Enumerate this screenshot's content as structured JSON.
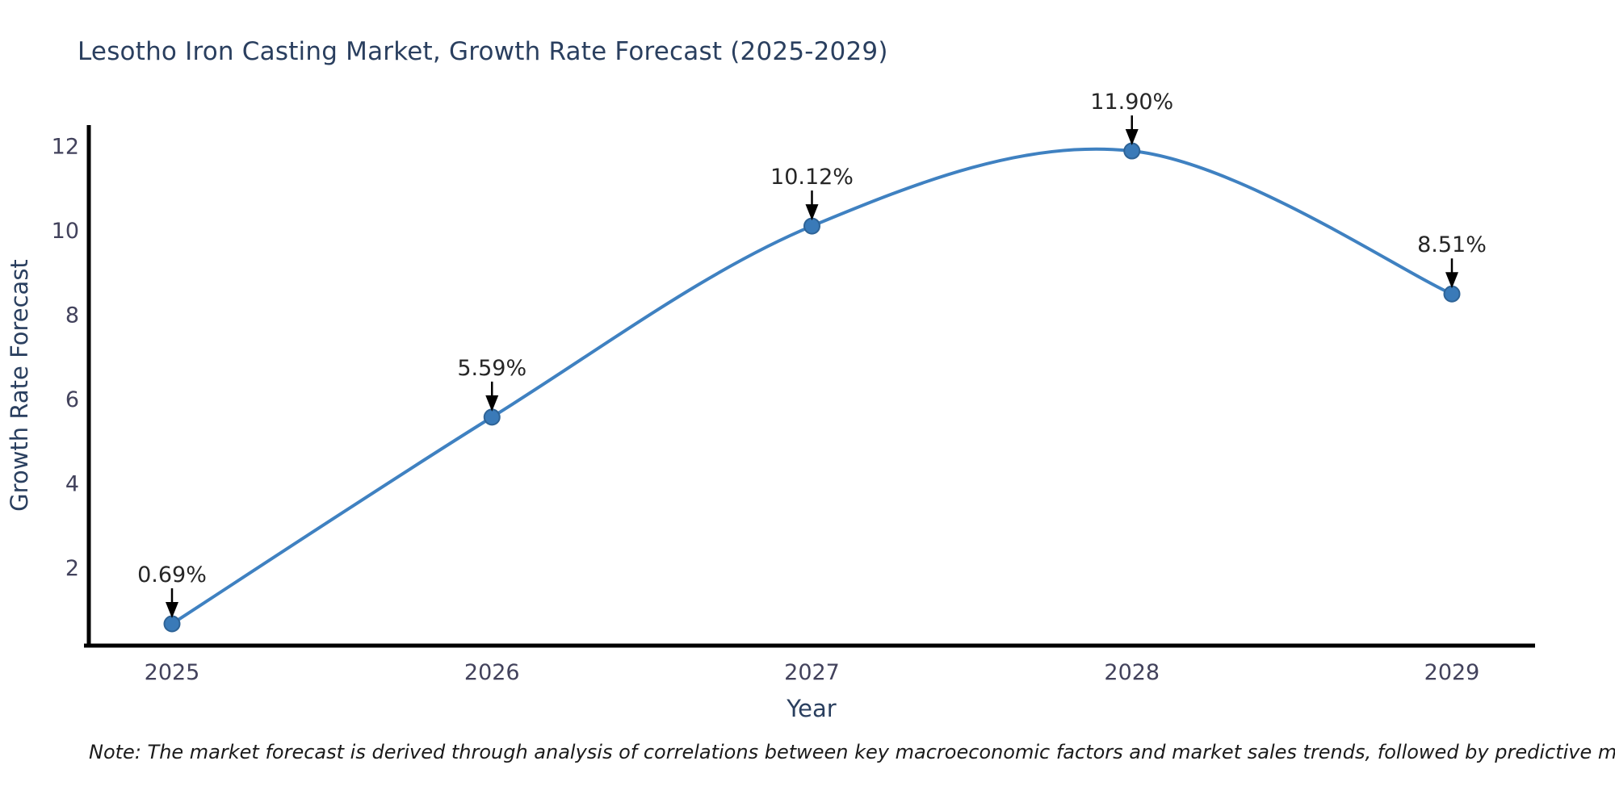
{
  "page": {
    "note": "Note: The market forecast is derived through analysis of correlations between key macroeconomic factors and market sales trends, followed by predictive modeling to project future sales"
  },
  "chart_data": {
    "type": "line",
    "title": "Lesotho Iron Casting Market, Growth Rate Forecast (2025-2029)",
    "xlabel": "Year",
    "ylabel": "Growth Rate Forecast",
    "x": [
      "2025",
      "2026",
      "2027",
      "2028",
      "2029"
    ],
    "series": [
      {
        "name": "Growth Rate Forecast",
        "values": [
          0.69,
          5.59,
          10.12,
          11.9,
          8.51
        ]
      }
    ],
    "point_labels": [
      "0.69%",
      "5.59%",
      "10.12%",
      "11.90%",
      "8.51%"
    ],
    "yticks": [
      2,
      4,
      6,
      8,
      10,
      12
    ],
    "ylim": [
      0.17,
      12.45
    ],
    "grid": false,
    "legend": "none",
    "line_shape": "spline",
    "annotation_style": "label-with-down-arrow",
    "colors": {
      "line": "#3f81c1",
      "marker_fill": "#3a7ab8",
      "marker_edge": "#2e6396",
      "arrow": "#000000",
      "annotation_text": "#262626",
      "axis_line": "#000000",
      "tick_text": "#42425c",
      "axis_title_text": "#2a3f5f",
      "title_text": "#2a3f5f",
      "background": "#ffffff"
    }
  }
}
